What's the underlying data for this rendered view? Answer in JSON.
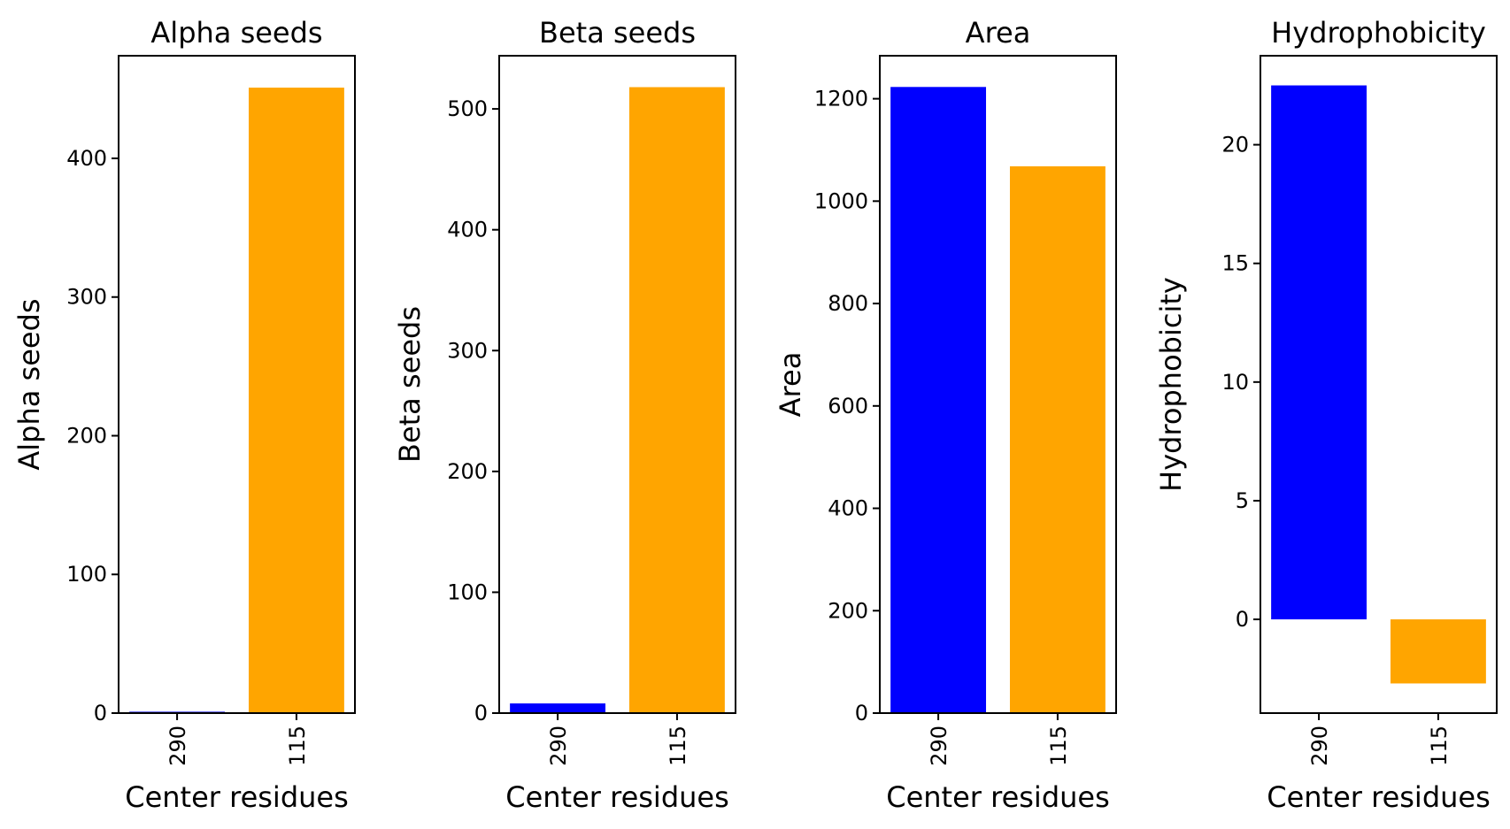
{
  "chart_data": [
    {
      "type": "bar",
      "title": "Alpha seeds",
      "xlabel": "Center residues",
      "ylabel": "Alpha seeds",
      "categories": [
        "290",
        "115"
      ],
      "values": [
        1,
        451
      ],
      "colors": [
        "#0000ff",
        "#ffa500"
      ],
      "ylim": [
        0,
        474
      ],
      "yticks": [
        0,
        100,
        200,
        300,
        400
      ]
    },
    {
      "type": "bar",
      "title": "Beta seeds",
      "xlabel": "Center residues",
      "ylabel": "Beta seeds",
      "categories": [
        "290",
        "115"
      ],
      "values": [
        8,
        518
      ],
      "colors": [
        "#0000ff",
        "#ffa500"
      ],
      "ylim": [
        0,
        544
      ],
      "yticks": [
        0,
        100,
        200,
        300,
        400,
        500
      ]
    },
    {
      "type": "bar",
      "title": "Area",
      "xlabel": "Center residues",
      "ylabel": "Area",
      "categories": [
        "290",
        "115"
      ],
      "values": [
        1223,
        1068
      ],
      "colors": [
        "#0000ff",
        "#ffa500"
      ],
      "ylim": [
        0,
        1284
      ],
      "yticks": [
        0,
        200,
        400,
        600,
        800,
        1000,
        1200
      ]
    },
    {
      "type": "bar",
      "title": "Hydrophobicity",
      "xlabel": "Center residues",
      "ylabel": "Hydrophobicity",
      "categories": [
        "290",
        "115"
      ],
      "values": [
        22.5,
        -2.7
      ],
      "colors": [
        "#0000ff",
        "#ffa500"
      ],
      "ylim": [
        -3.95,
        23.75
      ],
      "yticks": [
        0,
        5,
        10,
        15,
        20
      ]
    }
  ]
}
